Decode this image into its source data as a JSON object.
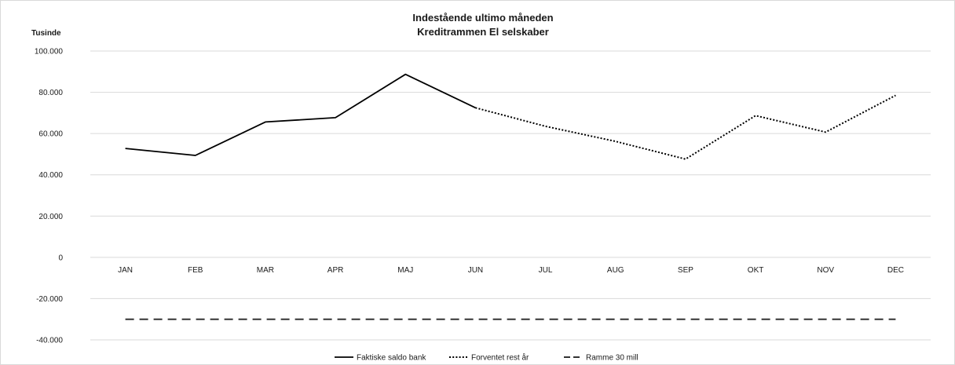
{
  "chart_data": {
    "type": "line",
    "title": "Indestående ultimo måneden",
    "subtitle": "Kreditrammen El selskaber",
    "ylabel": "Tusinde",
    "xlabel": "",
    "categories": [
      "JAN",
      "FEB",
      "MAR",
      "APR",
      "MAJ",
      "JUN",
      "JUL",
      "AUG",
      "SEP",
      "OKT",
      "NOV",
      "DEC"
    ],
    "ylim": [
      -40000,
      100000
    ],
    "yticks": [
      100000,
      80000,
      60000,
      40000,
      20000,
      0,
      -20000,
      -40000
    ],
    "ytick_labels": [
      "100.000",
      "80.000",
      "60.000",
      "40.000",
      "20.000",
      "0",
      "-20.000",
      "-40.000"
    ],
    "grid": true,
    "legend_position": "bottom",
    "series": [
      {
        "name": "Faktiske saldo bank",
        "style": "solid",
        "color": "#000000",
        "values": [
          52800,
          49400,
          65600,
          67700,
          88700,
          72500,
          null,
          null,
          null,
          null,
          null,
          null
        ]
      },
      {
        "name": "Forventet rest år",
        "style": "dotted",
        "color": "#000000",
        "values": [
          null,
          null,
          null,
          null,
          null,
          72500,
          63500,
          56200,
          47600,
          68700,
          60700,
          78500
        ]
      },
      {
        "name": "Ramme 30 mill",
        "style": "dashed",
        "color": "#333333",
        "values": [
          -30000,
          -30000,
          -30000,
          -30000,
          -30000,
          -30000,
          -30000,
          -30000,
          -30000,
          -30000,
          -30000,
          -30000
        ]
      }
    ]
  }
}
